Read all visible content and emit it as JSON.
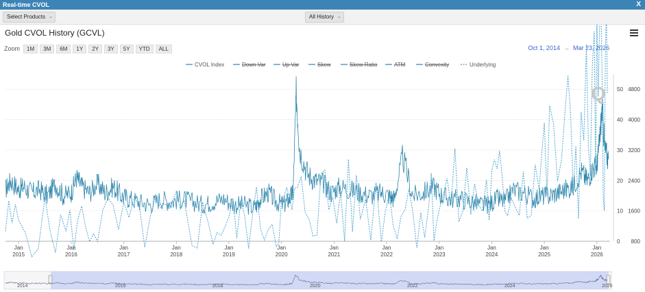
{
  "window": {
    "title": "Real-time CVOL",
    "close_label": "X"
  },
  "toolbar": {
    "products_label": "Select Products",
    "history_label": "All History"
  },
  "chart": {
    "title": "Gold CVOL History (GCVL)",
    "zoom_label": "Zoom",
    "zoom_buttons": [
      "1M",
      "3M",
      "6M",
      "1Y",
      "2Y",
      "3Y",
      "5Y",
      "YTD",
      "ALL"
    ],
    "date_from": "Oct 1, 2014",
    "date_arrow": "→",
    "date_to": "Mar 23, 2026",
    "legend": [
      "CVOL Index",
      "Down Var",
      "Up Var",
      "Skew",
      "Skew Ratio",
      "ATM",
      "Convexity",
      "Underlying"
    ],
    "watermark": "Q",
    "navigator_labels": [
      "2014",
      "2016",
      "2018",
      "2020",
      "2022",
      "2024",
      "2026"
    ]
  },
  "chart_data": {
    "type": "line",
    "title": "Gold CVOL History (GCVL)",
    "x_ticks": [
      {
        "top": "Jan",
        "bottom": "2015"
      },
      {
        "top": "Jan",
        "bottom": "2016"
      },
      {
        "top": "Jan",
        "bottom": "2017"
      },
      {
        "top": "Jan",
        "bottom": "2018"
      },
      {
        "top": "Jan",
        "bottom": "2019"
      },
      {
        "top": "Jan",
        "bottom": "2020"
      },
      {
        "top": "Jan",
        "bottom": "2021"
      },
      {
        "top": "Jan",
        "bottom": "2022"
      },
      {
        "top": "Jan",
        "bottom": "2023"
      },
      {
        "top": "Jan",
        "bottom": "2024"
      },
      {
        "top": "Jan",
        "bottom": "2025"
      },
      {
        "top": "Jan",
        "bottom": "2026"
      }
    ],
    "y_left": {
      "ticks": [
        "0",
        "10",
        "20",
        "30",
        "40",
        "50"
      ],
      "range": [
        0,
        55
      ]
    },
    "y_right": {
      "ticks": [
        "800",
        "1600",
        "2400",
        "3200",
        "4000",
        "4800"
      ],
      "range": [
        800,
        5200
      ]
    },
    "grid": true,
    "legend_position": "top-center",
    "series": [
      {
        "name": "CVOL Index",
        "color": "#2e86ab",
        "axis": "left",
        "x": [
          2014.75,
          2014.85,
          2015.0,
          2015.1,
          2015.25,
          2015.4,
          2015.55,
          2015.7,
          2015.85,
          2016.0,
          2016.1,
          2016.2,
          2016.35,
          2016.5,
          2016.65,
          2016.8,
          2016.95,
          2017.1,
          2017.3,
          2017.5,
          2017.7,
          2017.9,
          2018.1,
          2018.3,
          2018.5,
          2018.7,
          2018.9,
          2019.1,
          2019.3,
          2019.5,
          2019.6,
          2019.75,
          2019.9,
          2020.05,
          2020.15,
          2020.22,
          2020.28,
          2020.35,
          2020.5,
          2020.65,
          2020.8,
          2020.95,
          2021.1,
          2021.3,
          2021.5,
          2021.7,
          2021.9,
          2022.05,
          2022.15,
          2022.3,
          2022.5,
          2022.7,
          2022.9,
          2023.05,
          2023.2,
          2023.4,
          2023.6,
          2023.8,
          2023.95,
          2024.1,
          2024.25,
          2024.4,
          2024.6,
          2024.8,
          2024.95,
          2025.1,
          2025.25,
          2025.4,
          2025.55,
          2025.7,
          2025.82,
          2025.92,
          2026.0,
          2026.05,
          2026.1,
          2026.15,
          2026.22
        ],
        "values": [
          17,
          20,
          17,
          18,
          16,
          17,
          15,
          19,
          15,
          16,
          21,
          18,
          16,
          19,
          16,
          18,
          15,
          14,
          13,
          12,
          14,
          13,
          14,
          13,
          12,
          13,
          14,
          12,
          12,
          11,
          14,
          16,
          13,
          12,
          14,
          16,
          49,
          30,
          22,
          20,
          19,
          16,
          18,
          17,
          16,
          15,
          16,
          15,
          14,
          28,
          15,
          16,
          18,
          15,
          14,
          14,
          13,
          12,
          12,
          14,
          13,
          17,
          16,
          14,
          15,
          15,
          16,
          17,
          18,
          23,
          20,
          24,
          25,
          33,
          44,
          30,
          27
        ]
      },
      {
        "name": "Underlying",
        "color": "#4aa3cf",
        "axis": "right",
        "x": [
          2014.75,
          2015.0,
          2015.5,
          2015.9,
          2016.2,
          2016.5,
          2016.9,
          2017.3,
          2017.7,
          2018.0,
          2018.3,
          2018.7,
          2019.0,
          2019.3,
          2019.6,
          2019.9,
          2020.1,
          2020.3,
          2020.6,
          2020.9,
          2021.2,
          2021.5,
          2021.9,
          2022.2,
          2022.5,
          2022.8,
          2023.0,
          2023.3,
          2023.6,
          2023.9,
          2024.1,
          2024.3,
          2024.6,
          2024.9,
          2025.1,
          2025.4,
          2025.6,
          2025.8,
          2025.95,
          2026.05,
          2026.12,
          2026.2
        ],
        "values": [
          1210,
          1260,
          1180,
          1060,
          1240,
          1320,
          1170,
          1250,
          1290,
          1330,
          1320,
          1200,
          1290,
          1290,
          1490,
          1480,
          1570,
          1700,
          1950,
          1870,
          1780,
          1800,
          1810,
          1900,
          1820,
          1700,
          1900,
          1980,
          1950,
          2000,
          2050,
          2300,
          2500,
          2700,
          2900,
          3300,
          3350,
          3800,
          4200,
          4500,
          5000,
          4700
        ]
      }
    ]
  }
}
